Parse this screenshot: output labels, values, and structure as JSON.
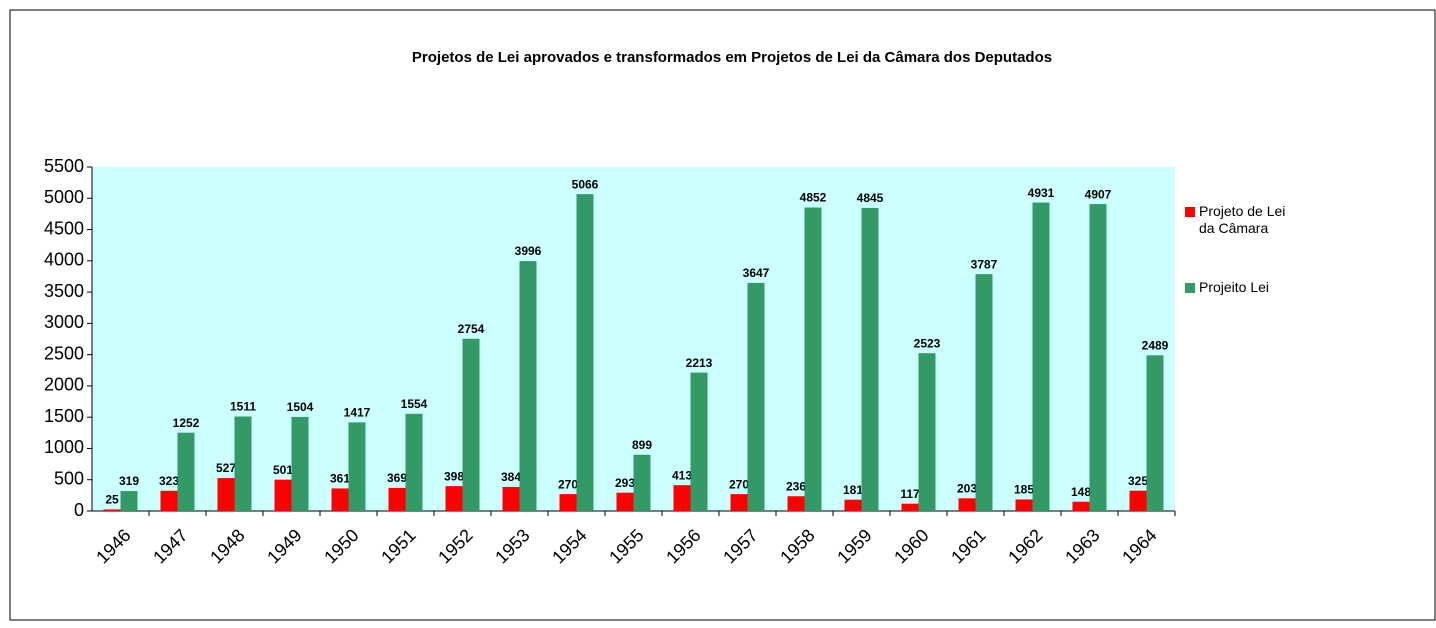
{
  "chart_data": {
    "type": "bar",
    "title": "Projetos de Lei aprovados e transformados em Projetos de Lei da Câmara dos Deputados",
    "categories": [
      "1946",
      "1947",
      "1948",
      "1949",
      "1950",
      "1951",
      "1952",
      "1953",
      "1954",
      "1955",
      "1956",
      "1957",
      "1958",
      "1959",
      "1960",
      "1961",
      "1962",
      "1963",
      "1964"
    ],
    "series": [
      {
        "name": "Projeto de Lei da Câmara",
        "color": "#ff0000",
        "values": [
          25,
          323,
          527,
          501,
          361,
          369,
          398,
          384,
          270,
          293,
          413,
          270,
          236,
          181,
          117,
          203,
          185,
          148,
          325
        ]
      },
      {
        "name": "Projeito Lei",
        "color": "#339966",
        "values": [
          319,
          1252,
          1511,
          1504,
          1417,
          1554,
          2754,
          3996,
          5066,
          899,
          2213,
          3647,
          4852,
          4845,
          2523,
          3787,
          4931,
          4907,
          2489
        ]
      }
    ],
    "ylim": [
      0,
      5500
    ],
    "yticks": [
      0,
      500,
      1000,
      1500,
      2000,
      2500,
      3000,
      3500,
      4000,
      4500,
      5000,
      5500
    ],
    "grid": false,
    "legend": "right",
    "plot_background": "#ccffff"
  }
}
